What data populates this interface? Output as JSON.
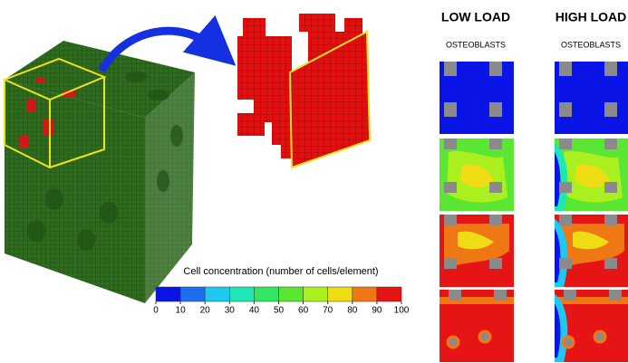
{
  "headers": {
    "low_load": "LOW LOAD",
    "high_load": "HIGH LOAD"
  },
  "subheaders": {
    "low": "OSTEOBLASTS",
    "high": "OSTEOBLASTS"
  },
  "colorbar": {
    "title": "Cell concentration (number of cells/element)",
    "ticks": [
      0,
      10,
      20,
      30,
      40,
      50,
      60,
      70,
      80,
      90,
      100
    ],
    "colors": [
      "#0a14e6",
      "#1e6ef0",
      "#1ec8f0",
      "#1ee6b4",
      "#32e664",
      "#5ae632",
      "#aaf01e",
      "#f0dc14",
      "#f07814",
      "#e61414"
    ]
  }
}
